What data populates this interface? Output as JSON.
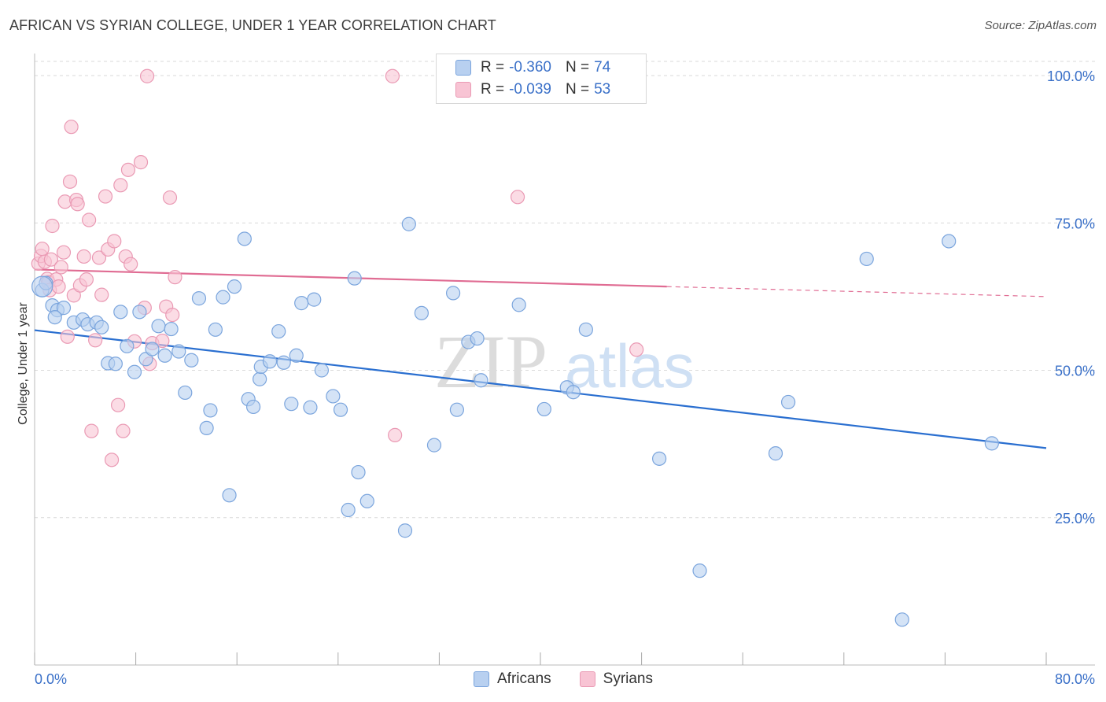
{
  "header": {
    "title": "AFRICAN VS SYRIAN COLLEGE, UNDER 1 YEAR CORRELATION CHART",
    "source": "Source: ZipAtlas.com"
  },
  "legend_top": {
    "africans": {
      "r_label": "R = ",
      "r_value": "-0.360",
      "n_label": "N = ",
      "n_value": "74"
    },
    "syrians": {
      "r_label": "R = ",
      "r_value": "-0.039",
      "n_label": "N = ",
      "n_value": "53"
    }
  },
  "legend_bottom": {
    "africans": "Africans",
    "syrians": "Syrians"
  },
  "watermark": {
    "zip": "ZIP",
    "atlas": "atlas"
  },
  "colors": {
    "africans_fill": "#b8d0f0",
    "africans_stroke": "#7ba5dd",
    "africans_line": "#2a6fd0",
    "syrians_fill": "#f8c4d4",
    "syrians_stroke": "#ea9ab4",
    "syrians_line": "#e06c93",
    "grid": "#d9d9d9",
    "axis_text": "#3a70c8"
  },
  "chart_data": {
    "type": "scatter",
    "title": "AFRICAN VS SYRIAN COLLEGE, UNDER 1 YEAR CORRELATION CHART",
    "xlabel": "",
    "ylabel": "College, Under 1 year",
    "xlim": [
      0,
      80
    ],
    "ylim": [
      0,
      100
    ],
    "x_tick_labels": [
      "0.0%",
      "80.0%"
    ],
    "y_ticks": [
      25,
      50,
      75,
      100
    ],
    "y_tick_labels": [
      "25.0%",
      "50.0%",
      "75.0%",
      "100.0%"
    ],
    "grid": true,
    "series": [
      {
        "name": "Africans",
        "r": -0.36,
        "n": 74,
        "trend": {
          "x": [
            0,
            80
          ],
          "y": [
            56.8,
            36.8
          ]
        },
        "points": [
          [
            0.6,
            63.6
          ],
          [
            1.4,
            61.0
          ],
          [
            1.8,
            60.2
          ],
          [
            2.3,
            60.6
          ],
          [
            3.1,
            58.1
          ],
          [
            3.8,
            58.6
          ],
          [
            4.2,
            57.8
          ],
          [
            4.9,
            58.1
          ],
          [
            5.3,
            57.3
          ],
          [
            5.8,
            51.2
          ],
          [
            6.4,
            51.1
          ],
          [
            6.8,
            59.9
          ],
          [
            7.3,
            54.1
          ],
          [
            7.9,
            49.7
          ],
          [
            8.3,
            59.9
          ],
          [
            8.8,
            51.9
          ],
          [
            9.3,
            53.6
          ],
          [
            9.8,
            57.5
          ],
          [
            10.3,
            52.5
          ],
          [
            10.8,
            57.0
          ],
          [
            11.4,
            53.2
          ],
          [
            11.9,
            46.2
          ],
          [
            12.4,
            51.7
          ],
          [
            13.0,
            62.2
          ],
          [
            13.6,
            40.2
          ],
          [
            13.9,
            43.2
          ],
          [
            14.3,
            56.9
          ],
          [
            14.9,
            62.4
          ],
          [
            15.4,
            28.8
          ],
          [
            15.8,
            64.2
          ],
          [
            16.6,
            72.3
          ],
          [
            16.9,
            45.1
          ],
          [
            17.3,
            43.8
          ],
          [
            17.8,
            48.5
          ],
          [
            17.9,
            50.6
          ],
          [
            18.6,
            51.5
          ],
          [
            19.3,
            56.6
          ],
          [
            19.7,
            51.3
          ],
          [
            20.3,
            44.3
          ],
          [
            20.7,
            52.5
          ],
          [
            21.1,
            61.4
          ],
          [
            21.8,
            43.7
          ],
          [
            22.1,
            62.0
          ],
          [
            22.7,
            50.0
          ],
          [
            23.6,
            45.6
          ],
          [
            24.2,
            43.3
          ],
          [
            24.8,
            26.3
          ],
          [
            25.3,
            65.6
          ],
          [
            25.6,
            32.7
          ],
          [
            26.3,
            27.8
          ],
          [
            29.3,
            22.8
          ],
          [
            29.6,
            74.8
          ],
          [
            30.6,
            59.7
          ],
          [
            31.6,
            37.3
          ],
          [
            33.1,
            63.1
          ],
          [
            33.4,
            43.3
          ],
          [
            34.3,
            54.8
          ],
          [
            35.0,
            55.4
          ],
          [
            35.3,
            48.3
          ],
          [
            38.3,
            61.1
          ],
          [
            40.3,
            43.4
          ],
          [
            42.1,
            47.1
          ],
          [
            42.6,
            46.3
          ],
          [
            43.6,
            56.9
          ],
          [
            49.4,
            35.0
          ],
          [
            52.6,
            16.0
          ],
          [
            58.6,
            35.9
          ],
          [
            59.6,
            44.6
          ],
          [
            65.8,
            68.9
          ],
          [
            68.6,
            7.7
          ],
          [
            72.3,
            71.9
          ],
          [
            75.7,
            37.6
          ],
          [
            0.9,
            64.8
          ],
          [
            1.6,
            59.0
          ]
        ]
      },
      {
        "name": "Syrians",
        "r": -0.039,
        "n": 53,
        "trend": {
          "x": [
            0,
            50
          ],
          "y": [
            67.1,
            64.2
          ]
        },
        "trend_dashed": {
          "x": [
            50,
            80
          ],
          "y": [
            64.2,
            62.5
          ]
        },
        "points": [
          [
            0.3,
            68.1
          ],
          [
            0.5,
            69.4
          ],
          [
            0.6,
            70.6
          ],
          [
            0.8,
            68.4
          ],
          [
            1.0,
            65.5
          ],
          [
            1.1,
            64.9
          ],
          [
            1.2,
            63.6
          ],
          [
            1.3,
            68.8
          ],
          [
            1.4,
            74.5
          ],
          [
            1.7,
            65.4
          ],
          [
            1.9,
            64.2
          ],
          [
            2.1,
            67.5
          ],
          [
            2.3,
            70.0
          ],
          [
            2.4,
            78.6
          ],
          [
            2.6,
            55.7
          ],
          [
            2.8,
            82.0
          ],
          [
            2.9,
            91.3
          ],
          [
            3.1,
            62.7
          ],
          [
            3.3,
            78.9
          ],
          [
            3.4,
            78.2
          ],
          [
            3.6,
            64.4
          ],
          [
            3.9,
            69.3
          ],
          [
            4.1,
            65.4
          ],
          [
            4.3,
            75.5
          ],
          [
            4.5,
            39.7
          ],
          [
            4.8,
            55.1
          ],
          [
            5.1,
            69.1
          ],
          [
            5.3,
            62.8
          ],
          [
            5.6,
            79.5
          ],
          [
            5.8,
            70.5
          ],
          [
            6.1,
            34.8
          ],
          [
            6.3,
            71.9
          ],
          [
            6.6,
            44.1
          ],
          [
            6.8,
            81.4
          ],
          [
            7.0,
            39.7
          ],
          [
            7.2,
            69.3
          ],
          [
            7.4,
            84.0
          ],
          [
            7.6,
            68.0
          ],
          [
            7.9,
            54.9
          ],
          [
            8.4,
            85.3
          ],
          [
            8.7,
            60.6
          ],
          [
            8.9,
            99.9
          ],
          [
            9.1,
            51.1
          ],
          [
            9.3,
            54.6
          ],
          [
            10.1,
            55.0
          ],
          [
            10.4,
            60.8
          ],
          [
            10.7,
            79.3
          ],
          [
            10.9,
            59.4
          ],
          [
            11.1,
            65.8
          ],
          [
            28.3,
            99.9
          ],
          [
            28.5,
            39.0
          ],
          [
            38.2,
            79.4
          ],
          [
            47.6,
            53.5
          ]
        ]
      }
    ]
  }
}
